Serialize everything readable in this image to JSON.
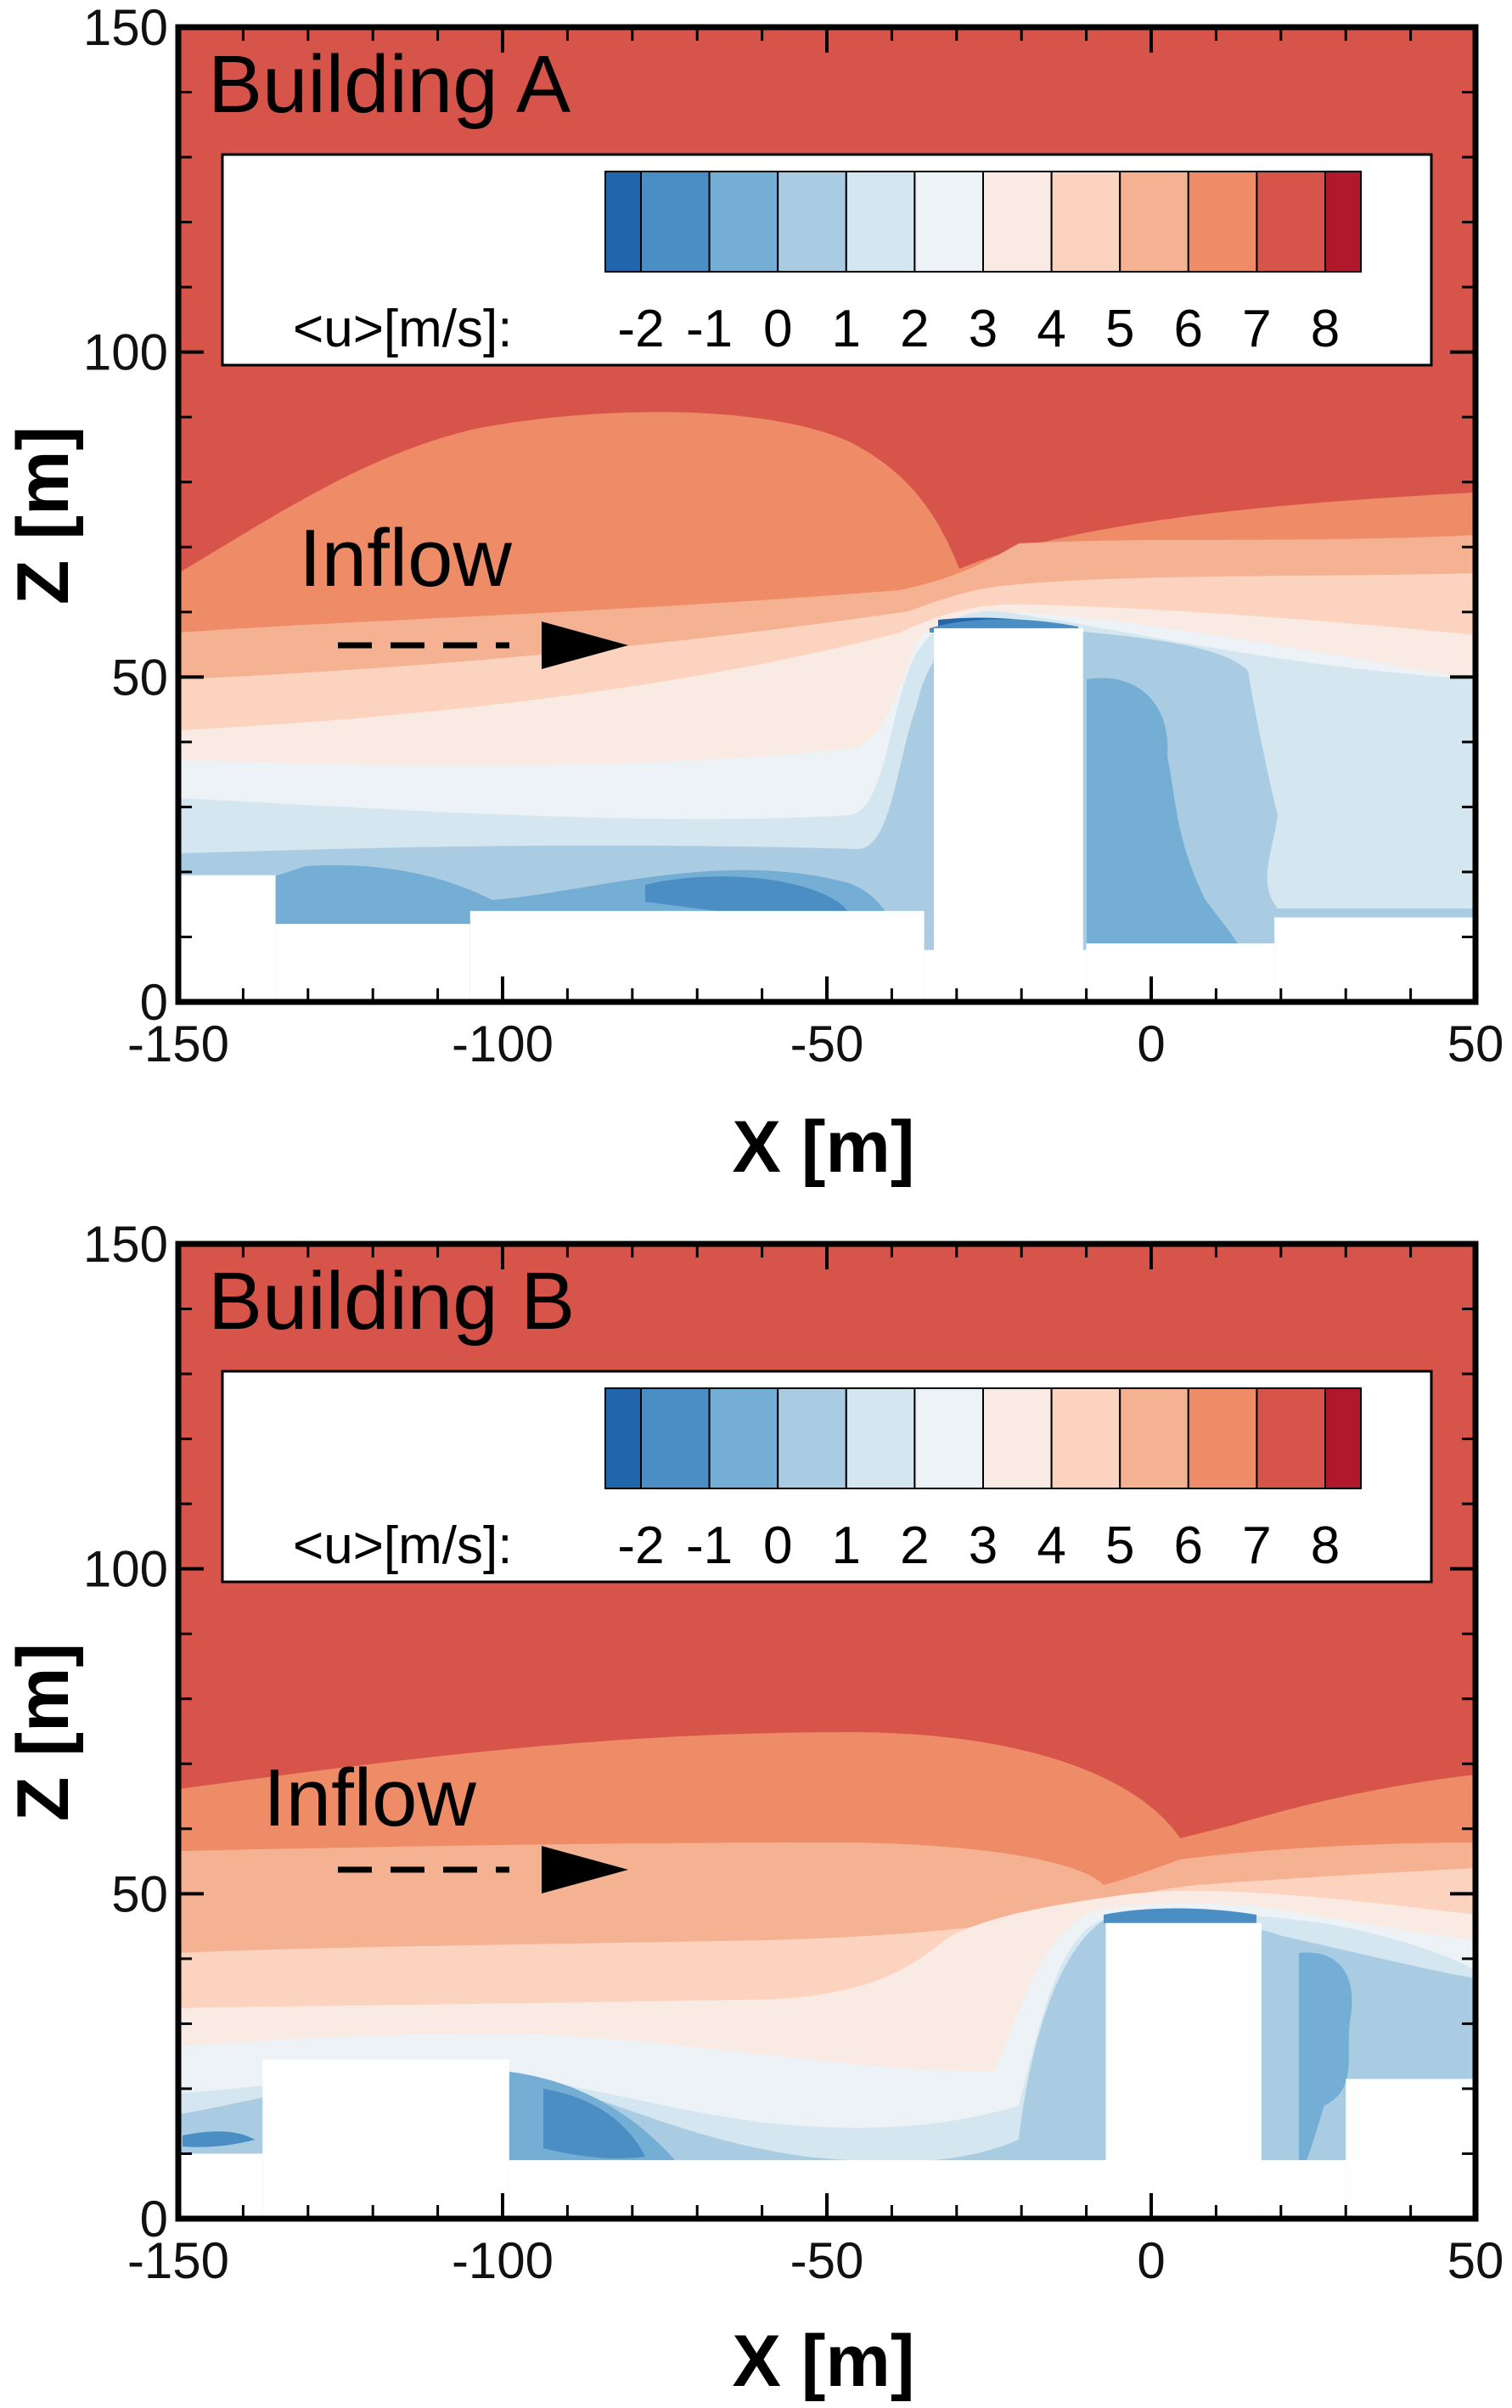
{
  "chart_data": [
    {
      "type": "heatmap",
      "title": "Building A",
      "annotation": "Inflow",
      "xlabel": "X [m]",
      "ylabel": "Z [m]",
      "xlim": [
        -150,
        50
      ],
      "ylim": [
        0,
        150
      ],
      "x_ticks": [
        "-150",
        "-100",
        "-50",
        "0",
        "50"
      ],
      "y_ticks": [
        "0",
        "50",
        "100",
        "150"
      ],
      "colorbar": {
        "label": "<u>[m/s]:",
        "levels": [
          "-2",
          "-1",
          "0",
          "1",
          "2",
          "3",
          "4",
          "5",
          "6",
          "7",
          "8"
        ],
        "colors": [
          "#2166ac",
          "#4a8ec4",
          "#74aed4",
          "#a9cce3",
          "#d4e6f0",
          "#ecf2f5",
          "#f9ebe4",
          "#fbd3bf",
          "#f5b293",
          "#ed8c67",
          "#d6544a",
          "#b2182b"
        ]
      },
      "buildings": [
        {
          "x0": -33.5,
          "x1": -10.5,
          "height": 57.5
        },
        {
          "x0": 19,
          "x1": 50,
          "height": 13
        }
      ],
      "ground_steps": [
        {
          "x0": -150,
          "x1": -135,
          "height": 19.5
        },
        {
          "x0": -135,
          "x1": -105,
          "height": 12
        },
        {
          "x0": -105,
          "x1": -35,
          "height": 14
        },
        {
          "x0": -35,
          "x1": -10,
          "height": 8
        },
        {
          "x0": -10,
          "x1": 19,
          "height": 9
        }
      ]
    },
    {
      "type": "heatmap",
      "title": "Building B",
      "annotation": "Inflow",
      "xlabel": "X [m]",
      "ylabel": "Z [m]",
      "xlim": [
        -150,
        50
      ],
      "ylim": [
        0,
        150
      ],
      "x_ticks": [
        "-150",
        "-100",
        "-50",
        "0",
        "50"
      ],
      "y_ticks": [
        "0",
        "50",
        "100",
        "150"
      ],
      "colorbar": {
        "label": "<u>[m/s]:",
        "levels": [
          "-2",
          "-1",
          "0",
          "1",
          "2",
          "3",
          "4",
          "5",
          "6",
          "7",
          "8"
        ],
        "colors": [
          "#2166ac",
          "#4a8ec4",
          "#74aed4",
          "#a9cce3",
          "#d4e6f0",
          "#ecf2f5",
          "#f9ebe4",
          "#fbd3bf",
          "#f5b293",
          "#ed8c67",
          "#d6544a",
          "#b2182b"
        ]
      },
      "buildings": [
        {
          "x0": -137,
          "x1": -99,
          "height": 24.5
        },
        {
          "x0": -7,
          "x1": 17,
          "height": 45.5
        },
        {
          "x0": 30,
          "x1": 50,
          "height": 21.5
        }
      ],
      "ground_steps": [
        {
          "x0": -150,
          "x1": -137,
          "height": 10
        },
        {
          "x0": -99,
          "x1": -7,
          "height": 9
        },
        {
          "x0": 17,
          "x1": 30,
          "height": 9
        }
      ]
    }
  ]
}
